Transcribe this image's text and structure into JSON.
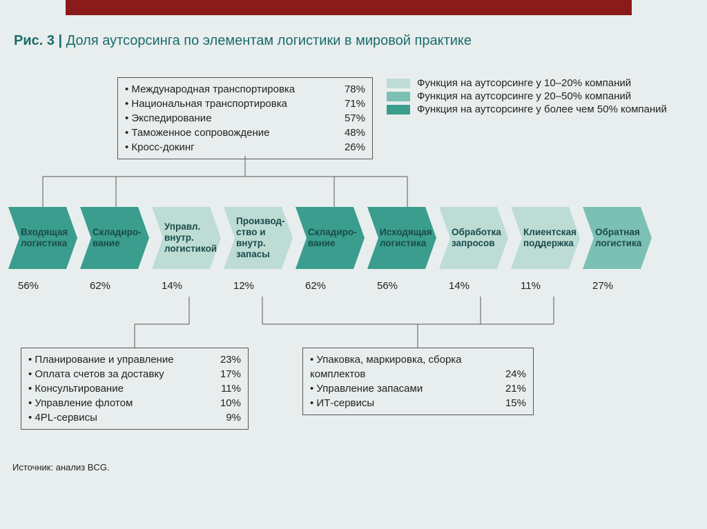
{
  "title_prefix": "Рис. 3 | ",
  "title": "Доля аутсорсинга по элементам логистики в мировой практике",
  "colors": {
    "dark": "#3a9d8d",
    "mid": "#7cc0b4",
    "light": "#bcdcd4",
    "red": "#8b1a1a",
    "text_teal": "#1a6b6b",
    "bg": "#e8eeee"
  },
  "legend": [
    {
      "swatch": "#bcdcd4",
      "text": "Функция на аутсорсинге у 10–20% компаний"
    },
    {
      "swatch": "#7cc0b4",
      "text": "Функция на аутсорсинге у 20–50% компаний"
    },
    {
      "swatch": "#3a9d8d",
      "text": "Функция на аутсорсинге у более чем 50% компаний"
    }
  ],
  "top_box": [
    {
      "label": "Международная транспортировка",
      "value": "78%"
    },
    {
      "label": "Национальная транспортировка",
      "value": "71%"
    },
    {
      "label": "Экспедирование",
      "value": "57%"
    },
    {
      "label": "Таможенное сопровождение",
      "value": "48%"
    },
    {
      "label": "Кросс-докинг",
      "value": "26%"
    }
  ],
  "chevrons": [
    {
      "label": "Входящая логистика",
      "color": "#3a9d8d",
      "pct": "56%"
    },
    {
      "label": "Складиро-вание",
      "color": "#3a9d8d",
      "pct": "62%"
    },
    {
      "label": "Управл. внутр. логистикой",
      "color": "#bcdcd4",
      "pct": "14%"
    },
    {
      "label": "Производ-ство и внутр. запасы",
      "color": "#bcdcd4",
      "pct": "12%"
    },
    {
      "label": "Складиро-вание",
      "color": "#3a9d8d",
      "pct": "62%"
    },
    {
      "label": "Исходящая логистика",
      "color": "#3a9d8d",
      "pct": "56%"
    },
    {
      "label": "Обработка запросов",
      "color": "#bcdcd4",
      "pct": "14%"
    },
    {
      "label": "Клиентская поддержка",
      "color": "#bcdcd4",
      "pct": "11%"
    },
    {
      "label": "Обратная логистика",
      "color": "#7cc0b4",
      "pct": "27%"
    }
  ],
  "bot_left": [
    {
      "label": "Планирование и управление",
      "value": "23%"
    },
    {
      "label": "Оплата счетов за доставку",
      "value": "17%"
    },
    {
      "label": "Консультирование",
      "value": "11%"
    },
    {
      "label": "Управление флотом",
      "value": "10%"
    },
    {
      "label": "4PL-сервисы",
      "value": "9%"
    }
  ],
  "bot_right": [
    {
      "label": "Упаковка, маркировка, сборка комплектов",
      "value": "24%"
    },
    {
      "label": "Управление запасами",
      "value": "21%"
    },
    {
      "label": "ИТ-сервисы",
      "value": "15%"
    }
  ],
  "source": "Источник: анализ BCG.",
  "layout": {
    "chevron_width": 100,
    "chevron_height": 90,
    "notch": 16
  }
}
